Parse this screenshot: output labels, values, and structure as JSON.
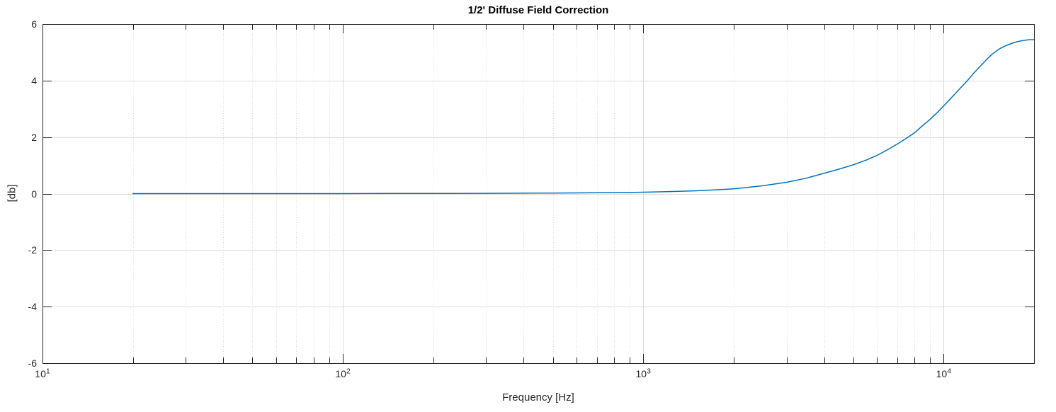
{
  "chart_data": {
    "type": "line",
    "title": "1/2' Diffuse Field Correction",
    "xlabel": "Frequency [Hz]",
    "ylabel": "[db]",
    "x_scale": "log",
    "xlim": [
      10,
      20000
    ],
    "ylim": [
      -6,
      6
    ],
    "tick_base": "10",
    "x_tick_exponents": [
      1,
      2,
      3,
      4
    ],
    "y_ticks": [
      -6,
      -4,
      -2,
      0,
      2,
      4,
      6
    ],
    "grid": true,
    "x_minor_grid": true,
    "legend": "none",
    "colors": {
      "line": "#0072BD",
      "axis": "#262626",
      "grid_major": "#dbdbdb",
      "grid_minor": "#d9d9d9",
      "background": "#ffffff"
    },
    "series": [
      {
        "points": [
          [
            20,
            0
          ],
          [
            30,
            0
          ],
          [
            40,
            0
          ],
          [
            50,
            0
          ],
          [
            70,
            0
          ],
          [
            100,
            0
          ],
          [
            150,
            0.005
          ],
          [
            200,
            0.005
          ],
          [
            300,
            0.01
          ],
          [
            400,
            0.015
          ],
          [
            500,
            0.02
          ],
          [
            600,
            0.025
          ],
          [
            700,
            0.03
          ],
          [
            800,
            0.035
          ],
          [
            900,
            0.04
          ],
          [
            1000,
            0.05
          ],
          [
            1200,
            0.07
          ],
          [
            1500,
            0.1
          ],
          [
            1800,
            0.14
          ],
          [
            2000,
            0.17
          ],
          [
            2500,
            0.28
          ],
          [
            3000,
            0.4
          ],
          [
            3500,
            0.55
          ],
          [
            4000,
            0.72
          ],
          [
            4500,
            0.87
          ],
          [
            5000,
            1.02
          ],
          [
            5500,
            1.18
          ],
          [
            6000,
            1.35
          ],
          [
            6500,
            1.55
          ],
          [
            7000,
            1.75
          ],
          [
            7500,
            1.95
          ],
          [
            8000,
            2.15
          ],
          [
            8500,
            2.4
          ],
          [
            9000,
            2.62
          ],
          [
            9500,
            2.86
          ],
          [
            10000,
            3.1
          ],
          [
            10500,
            3.34
          ],
          [
            11000,
            3.57
          ],
          [
            11500,
            3.79
          ],
          [
            12000,
            4.0
          ],
          [
            12500,
            4.22
          ],
          [
            13000,
            4.42
          ],
          [
            13500,
            4.6
          ],
          [
            14000,
            4.78
          ],
          [
            14500,
            4.93
          ],
          [
            15000,
            5.05
          ],
          [
            15500,
            5.15
          ],
          [
            16000,
            5.22
          ],
          [
            16500,
            5.28
          ],
          [
            17000,
            5.33
          ],
          [
            17500,
            5.37
          ],
          [
            18000,
            5.4
          ],
          [
            18500,
            5.42
          ],
          [
            19000,
            5.44
          ],
          [
            19500,
            5.45
          ],
          [
            20000,
            5.45
          ]
        ]
      }
    ]
  }
}
